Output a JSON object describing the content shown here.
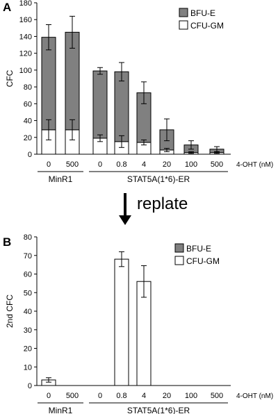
{
  "replate_label": "replate",
  "chart_data": [
    {
      "type": "bar",
      "stacked": true,
      "panel_label": "A",
      "ylabel": "CFC",
      "ylim": [
        0,
        180
      ],
      "yticks": [
        0,
        20,
        40,
        60,
        80,
        100,
        120,
        140,
        160,
        180
      ],
      "categories": [
        "0",
        "500",
        "0",
        "0.8",
        "4",
        "20",
        "100",
        "500"
      ],
      "x_unit_label": "4-OHT (nM)",
      "groups": [
        {
          "label": "MinR1",
          "categories": [
            0,
            1
          ]
        },
        {
          "label": "STAT5A(1*6)-ER",
          "categories": [
            2,
            3,
            4,
            5,
            6,
            7
          ]
        }
      ],
      "legend": {
        "position": "top-right",
        "entries": [
          "BFU-E",
          "CFU-GM"
        ]
      },
      "series": [
        {
          "name": "CFU-GM",
          "color": "#ffffff",
          "values": [
            29,
            29,
            19,
            15,
            14,
            5,
            2,
            2
          ]
        },
        {
          "name": "BFU-E",
          "color": "#808080",
          "values": [
            110,
            116,
            80,
            83,
            59,
            24,
            9,
            4
          ]
        }
      ],
      "error_bars": {
        "total": [
          15,
          19,
          4,
          11,
          13,
          13,
          5,
          3
        ],
        "CFU-GM": [
          12,
          12,
          4,
          7,
          3,
          2,
          1,
          1
        ]
      }
    },
    {
      "type": "bar",
      "stacked": true,
      "panel_label": "B",
      "ylabel": "2nd CFC",
      "ylim": [
        0,
        80
      ],
      "yticks": [
        0,
        10,
        20,
        30,
        40,
        50,
        60,
        70,
        80
      ],
      "categories": [
        "0",
        "500",
        "0",
        "0.8",
        "4",
        "20",
        "100",
        "500"
      ],
      "x_unit_label": "4-OHT (nM)",
      "groups": [
        {
          "label": "MinR1",
          "categories": [
            0,
            1
          ]
        },
        {
          "label": "STAT5A(1*6)-ER",
          "categories": [
            2,
            3,
            4,
            5,
            6,
            7
          ]
        }
      ],
      "legend": {
        "position": "top-right",
        "entries": [
          "BFU-E",
          "CFU-GM"
        ]
      },
      "series": [
        {
          "name": "CFU-GM",
          "color": "#ffffff",
          "values": [
            3,
            0,
            0,
            68,
            56,
            0,
            0,
            0
          ]
        },
        {
          "name": "BFU-E",
          "color": "#808080",
          "values": [
            0,
            0,
            0,
            0,
            0,
            0,
            0,
            0
          ]
        }
      ],
      "error_bars": {
        "total": [
          1.2,
          0,
          0,
          4,
          8.5,
          0,
          0,
          0
        ],
        "CFU-GM": [
          0,
          0,
          0,
          0,
          0,
          0,
          0,
          0
        ]
      }
    }
  ]
}
